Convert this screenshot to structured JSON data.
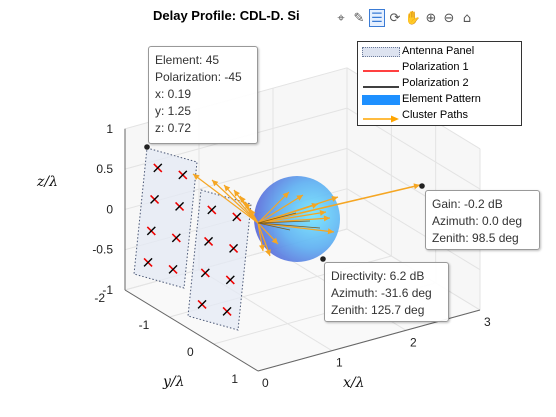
{
  "title": "Delay Profile: CDL-D. Si",
  "toolbar": {
    "icons": [
      "datatip-icon",
      "brush-icon",
      "data-cursor-icon",
      "rotate-icon",
      "pan-icon",
      "zoom-in-icon",
      "zoom-out-icon",
      "home-icon"
    ],
    "glyphs": [
      "⌖",
      "✎",
      "☰",
      "⟳",
      "✋",
      "⊕",
      "⊖",
      "⌂"
    ]
  },
  "legend": {
    "entries": [
      {
        "label": "Antenna Panel",
        "symbol": "panel",
        "color": "#dde3f0"
      },
      {
        "label": "Polarization 1",
        "symbol": "line",
        "color": "#ff0000"
      },
      {
        "label": "Polarization 2",
        "symbol": "line",
        "color": "#000000"
      },
      {
        "label": "Element Pattern",
        "symbol": "patch",
        "color": "#1e90ff"
      },
      {
        "label": "Cluster Paths",
        "symbol": "arrow",
        "color": "#ffa500"
      }
    ]
  },
  "datatips": {
    "element": {
      "lines": [
        "Element: 45",
        "Polarization: -45",
        "x: 0.19",
        "y: 1.25",
        "z: 0.72"
      ]
    },
    "gain": {
      "lines": [
        "Gain: -0.2 dB",
        "Azimuth: 0.0 deg",
        "Zenith: 98.5 deg"
      ]
    },
    "directivity": {
      "lines": [
        "Directivity: 6.2 dB",
        "Azimuth: -31.6 deg",
        "Zenith: 125.7 deg"
      ]
    }
  },
  "chart_data": {
    "type": "scatter",
    "title": "Delay Profile: CDL-D. Si",
    "xlabel": "$x/\\lambda$",
    "ylabel": "$y/\\lambda$",
    "zlabel": "$z/\\lambda$",
    "x_ticks": [
      "0",
      "1",
      "2",
      "3"
    ],
    "y_ticks": [
      "1",
      "0",
      "-1",
      "-2"
    ],
    "z_ticks": [
      "1",
      "0.5",
      "0",
      "-0.5",
      "-1"
    ],
    "xlim": [
      0,
      3
    ],
    "ylim": [
      -2,
      1
    ],
    "zlim": [
      -1,
      1
    ],
    "grid": true,
    "legend_position": "top-right",
    "series": [
      {
        "name": "Element Pattern",
        "values": [
          {
            "directivity_dB": 6.2,
            "azimuth_deg": -31.6,
            "zenith_deg": 125.7
          }
        ]
      },
      {
        "name": "Cluster Paths",
        "values": [
          {
            "gain_dB": -0.2,
            "azimuth_deg": 0.0,
            "zenith_deg": 98.5
          }
        ]
      },
      {
        "name": "Antenna Panel",
        "values": [
          {
            "element": 45,
            "polarization": -45,
            "x": 0.19,
            "y": 1.25,
            "z": 0.72
          }
        ]
      }
    ]
  }
}
